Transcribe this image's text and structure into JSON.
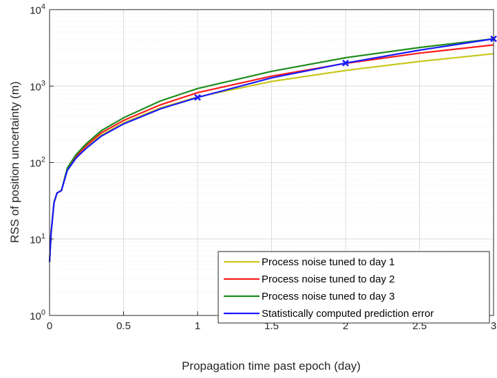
{
  "chart_data": {
    "type": "line",
    "xlabel": "Propagation time past epoch (day)",
    "ylabel": "RSS of position uncertainty (m)",
    "xlim": [
      0,
      3
    ],
    "ylim": [
      1,
      10000
    ],
    "yscale": "log",
    "grid": true,
    "minor_grid": true,
    "legend_position": "bottom-right",
    "x_ticks": [
      "0",
      "0.5",
      "1",
      "1.5",
      "2",
      "2.5",
      "3"
    ],
    "x_tick_values": [
      0,
      0.5,
      1,
      1.5,
      2,
      2.5,
      3
    ],
    "y_tick_values": [
      1,
      10,
      100,
      1000,
      10000
    ],
    "y_tick_labels": [
      {
        "base": "10",
        "exp": "0"
      },
      {
        "base": "10",
        "exp": "1"
      },
      {
        "base": "10",
        "exp": "2"
      },
      {
        "base": "10",
        "exp": "3"
      },
      {
        "base": "10",
        "exp": "4"
      }
    ],
    "series": [
      {
        "name": "Process noise tuned to day 1",
        "color": "#c8c81e",
        "points": [
          [
            0,
            5
          ],
          [
            0.01,
            12
          ],
          [
            0.03,
            30
          ],
          [
            0.05,
            40
          ],
          [
            0.08,
            43
          ],
          [
            0.12,
            80
          ],
          [
            0.18,
            118
          ],
          [
            0.25,
            160
          ],
          [
            0.35,
            230
          ],
          [
            0.5,
            330
          ],
          [
            0.75,
            520
          ],
          [
            1.0,
            720
          ],
          [
            1.5,
            1150
          ],
          [
            2.0,
            1600
          ],
          [
            2.5,
            2100
          ],
          [
            3.0,
            2650
          ]
        ]
      },
      {
        "name": "Process noise tuned to day 2",
        "color": "#ff1a1a",
        "points": [
          [
            0,
            5
          ],
          [
            0.01,
            12
          ],
          [
            0.03,
            30
          ],
          [
            0.05,
            40
          ],
          [
            0.08,
            43
          ],
          [
            0.12,
            82
          ],
          [
            0.18,
            122
          ],
          [
            0.25,
            168
          ],
          [
            0.35,
            245
          ],
          [
            0.5,
            355
          ],
          [
            0.75,
            570
          ],
          [
            1.0,
            820
          ],
          [
            1.5,
            1350
          ],
          [
            2.0,
            1980
          ],
          [
            2.5,
            2700
          ],
          [
            3.0,
            3450
          ]
        ]
      },
      {
        "name": "Process noise tuned to day 3",
        "color": "#1e8c1e",
        "points": [
          [
            0,
            5
          ],
          [
            0.01,
            12
          ],
          [
            0.03,
            30
          ],
          [
            0.05,
            40
          ],
          [
            0.08,
            43
          ],
          [
            0.12,
            85
          ],
          [
            0.18,
            128
          ],
          [
            0.25,
            178
          ],
          [
            0.35,
            262
          ],
          [
            0.5,
            385
          ],
          [
            0.75,
            640
          ],
          [
            1.0,
            930
          ],
          [
            1.5,
            1560
          ],
          [
            2.0,
            2350
          ],
          [
            2.5,
            3200
          ],
          [
            3.0,
            4150
          ]
        ]
      },
      {
        "name": "Statistically computed prediction error",
        "color": "#1a1aff",
        "points": [
          [
            0,
            5
          ],
          [
            0.01,
            12
          ],
          [
            0.03,
            30
          ],
          [
            0.05,
            40
          ],
          [
            0.08,
            43
          ],
          [
            0.12,
            79
          ],
          [
            0.18,
            115
          ],
          [
            0.25,
            155
          ],
          [
            0.35,
            222
          ],
          [
            0.5,
            320
          ],
          [
            0.75,
            505
          ],
          [
            1.0,
            710
          ],
          [
            1.5,
            1280
          ],
          [
            2.0,
            2000
          ],
          [
            2.5,
            2950
          ],
          [
            3.0,
            4150
          ]
        ],
        "markers": [
          [
            1.0,
            710
          ],
          [
            2.0,
            2000
          ],
          [
            3.0,
            4150
          ]
        ]
      }
    ]
  }
}
